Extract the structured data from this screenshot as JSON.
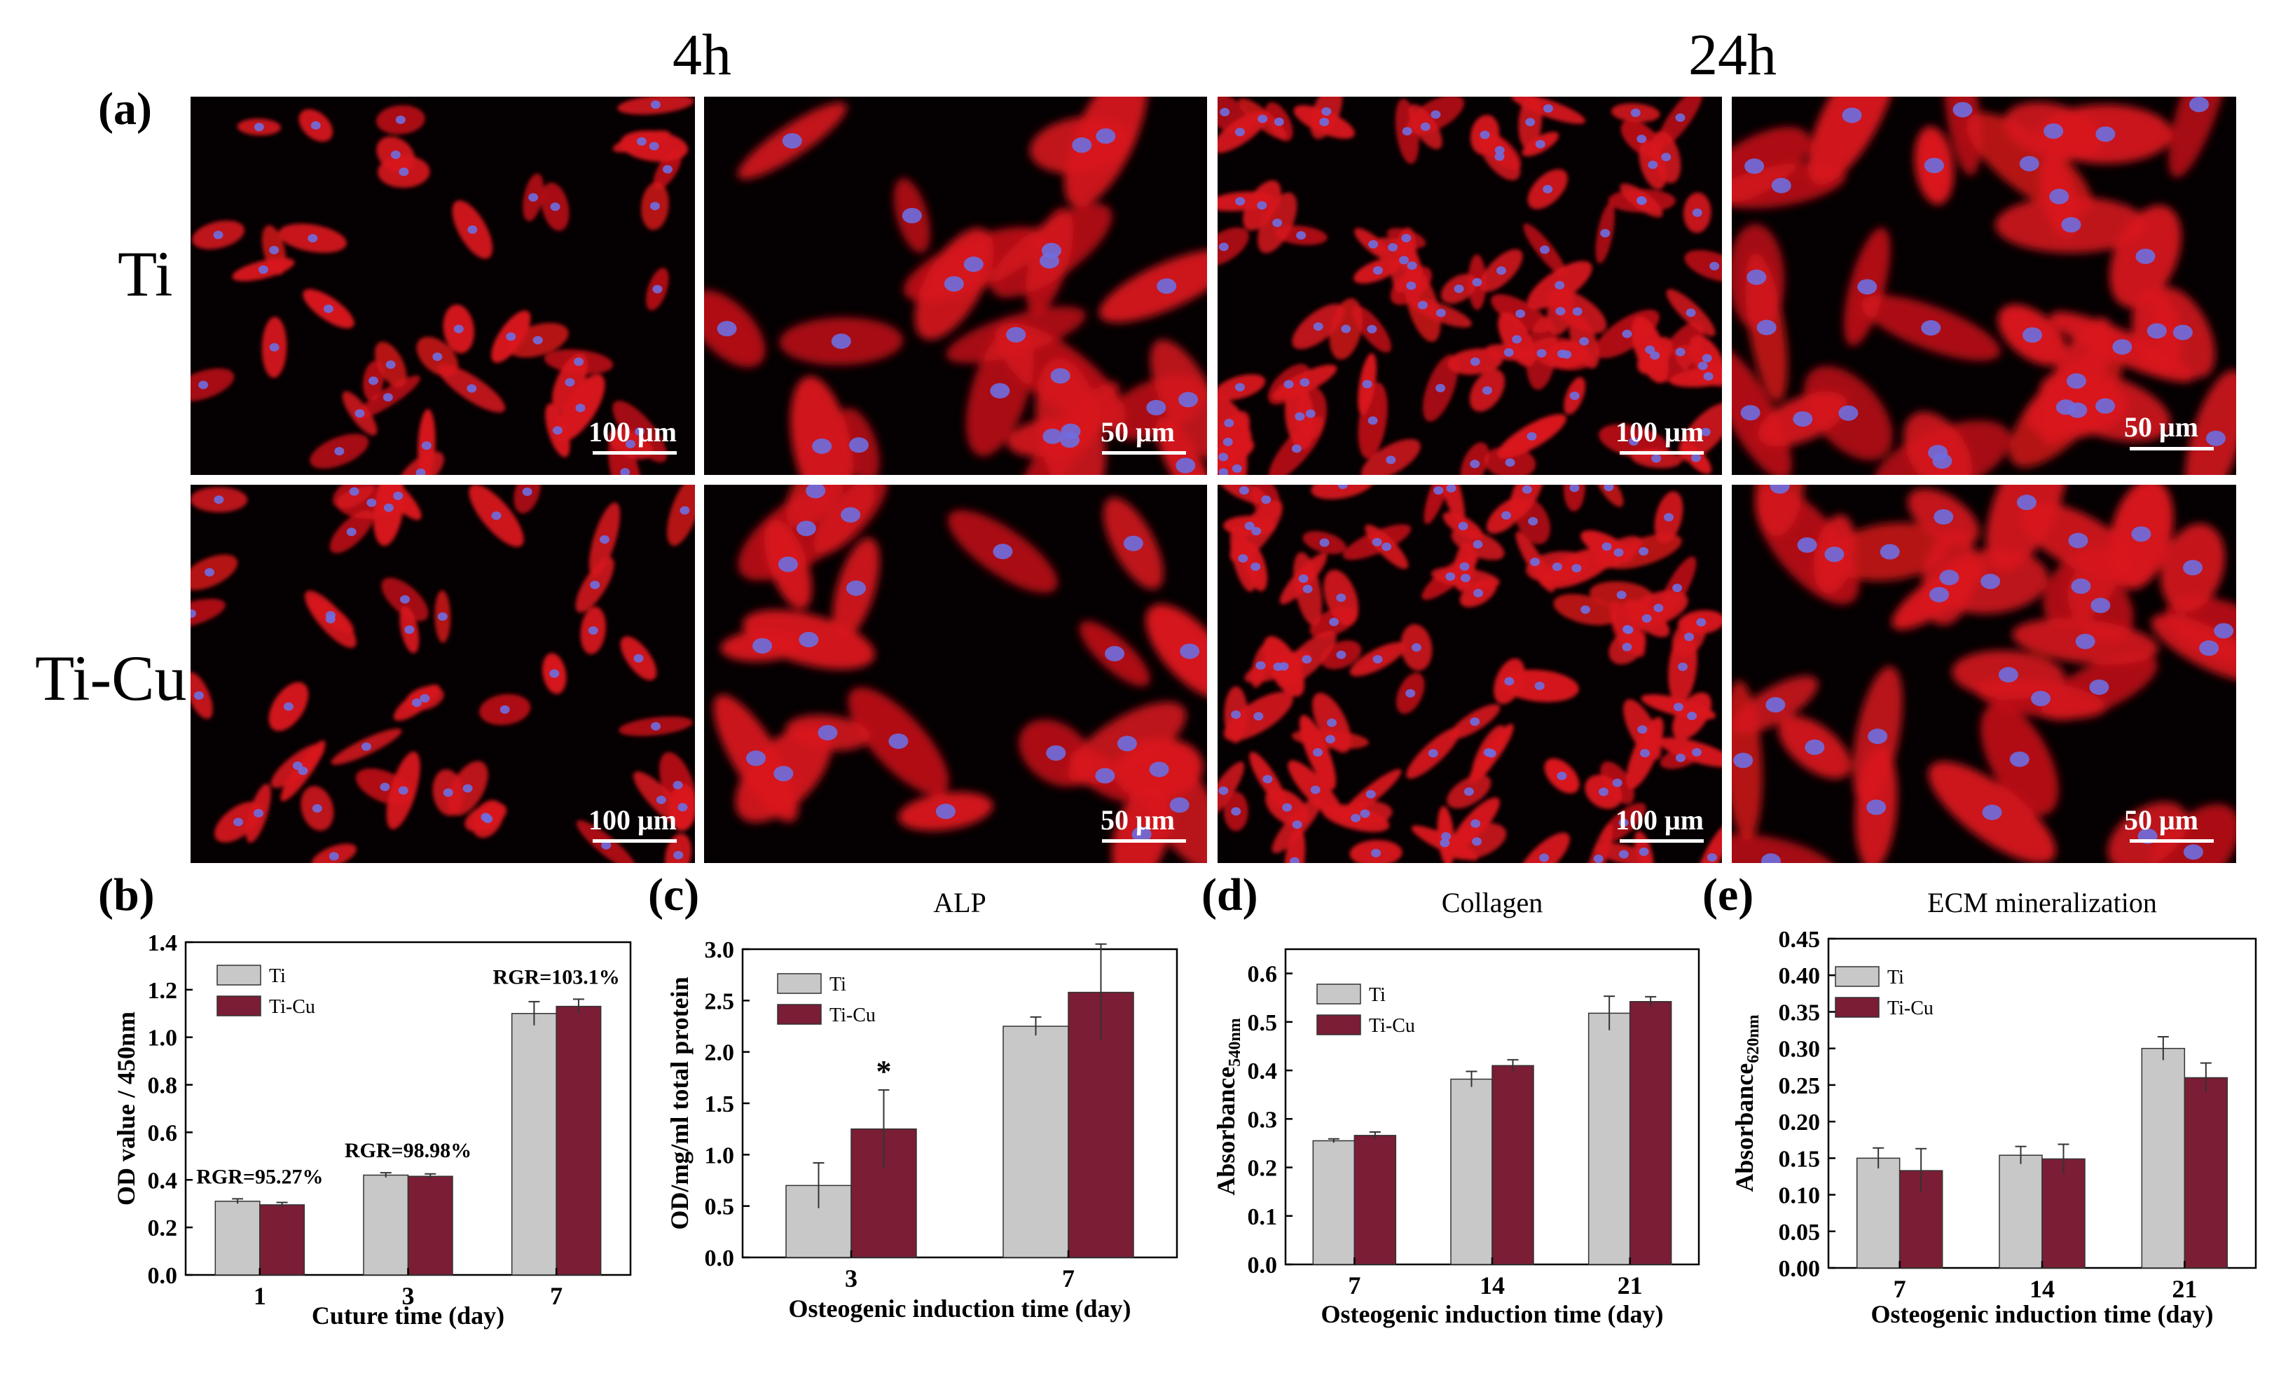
{
  "header": {
    "time_4h": "4h",
    "time_24h": "24h"
  },
  "panel_labels": {
    "a": "(a)",
    "b": "(b)",
    "c": "(c)",
    "d": "(d)",
    "e": "(e)"
  },
  "rows": {
    "ti": "Ti",
    "ticu": "Ti-Cu"
  },
  "scalebars": {
    "s100": "100 μm",
    "s50": "50 μm"
  },
  "colors": {
    "ti": "#c8c8c8",
    "ticu": "#7a1d35",
    "cytoskeleton": "#d8141c",
    "nucleus": "#6e6ee0",
    "background": "#050002"
  },
  "chart_data": [
    {
      "id": "b",
      "type": "bar",
      "title": "",
      "xlabel": "Cuture time (day)",
      "ylabel": "OD value / 450nm",
      "categories": [
        "1",
        "3",
        "7"
      ],
      "ylim": [
        0,
        1.4
      ],
      "yticks": [
        "0.0",
        "0.2",
        "0.4",
        "0.6",
        "0.8",
        "1.0",
        "1.2",
        "1.4"
      ],
      "series": [
        {
          "name": "Ti",
          "values": [
            0.31,
            0.42,
            1.1
          ],
          "errors": [
            0.01,
            0.01,
            0.05
          ]
        },
        {
          "name": "Ti-Cu",
          "values": [
            0.295,
            0.415,
            1.13
          ],
          "errors": [
            0.01,
            0.01,
            0.03
          ]
        }
      ],
      "annotations": [
        "RGR=95.27%",
        "RGR=98.98%",
        "RGR=103.1%"
      ],
      "legend": "top-left"
    },
    {
      "id": "c",
      "type": "bar",
      "title": "ALP",
      "xlabel": "Osteogenic induction time (day)",
      "ylabel": "OD/mg/ml total protein",
      "categories": [
        "3",
        "7"
      ],
      "ylim": [
        0,
        3.0
      ],
      "yticks": [
        "0.0",
        "0.5",
        "1.0",
        "1.5",
        "2.0",
        "2.5",
        "3.0"
      ],
      "series": [
        {
          "name": "Ti",
          "values": [
            0.7,
            2.25
          ],
          "errors": [
            0.22,
            0.09
          ]
        },
        {
          "name": "Ti-Cu",
          "values": [
            1.25,
            2.58
          ],
          "errors": [
            0.38,
            0.47
          ]
        }
      ],
      "annotations": [
        "*"
      ],
      "legend": "top-left"
    },
    {
      "id": "d",
      "type": "bar",
      "title": "Collagen",
      "xlabel": "Osteogenic induction time (day)",
      "ylabel": "Absorbance540nm",
      "categories": [
        "7",
        "14",
        "21"
      ],
      "ylim": [
        0,
        0.65
      ],
      "yticks": [
        "0.0",
        "0.1",
        "0.2",
        "0.3",
        "0.4",
        "0.5",
        "0.6"
      ],
      "series": [
        {
          "name": "Ti",
          "values": [
            0.255,
            0.382,
            0.518
          ],
          "errors": [
            0.004,
            0.016,
            0.035
          ]
        },
        {
          "name": "Ti-Cu",
          "values": [
            0.266,
            0.41,
            0.542
          ],
          "errors": [
            0.007,
            0.012,
            0.01
          ]
        }
      ],
      "legend": "top-left"
    },
    {
      "id": "e",
      "type": "bar",
      "title": "ECM mineralization",
      "xlabel": "Osteogenic induction time (day)",
      "ylabel": "Absorbance620nm",
      "categories": [
        "7",
        "14",
        "21"
      ],
      "ylim": [
        0,
        0.45
      ],
      "yticks": [
        "0.00",
        "0.05",
        "0.10",
        "0.15",
        "0.20",
        "0.25",
        "0.30",
        "0.35",
        "0.40",
        "0.45"
      ],
      "series": [
        {
          "name": "Ti",
          "values": [
            0.15,
            0.154,
            0.3
          ],
          "errors": [
            0.014,
            0.012,
            0.016
          ]
        },
        {
          "name": "Ti-Cu",
          "values": [
            0.133,
            0.149,
            0.26
          ],
          "errors": [
            0.03,
            0.02,
            0.02
          ]
        }
      ],
      "legend": "top-left"
    }
  ]
}
